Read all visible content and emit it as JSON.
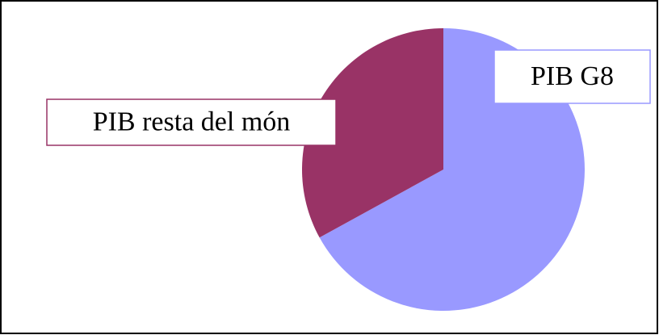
{
  "chart_data": {
    "type": "pie",
    "categories": [
      "PIB G8",
      "PIB resta del món"
    ],
    "values": [
      67,
      33
    ],
    "colors": [
      "#9999ff",
      "#993366"
    ]
  }
}
